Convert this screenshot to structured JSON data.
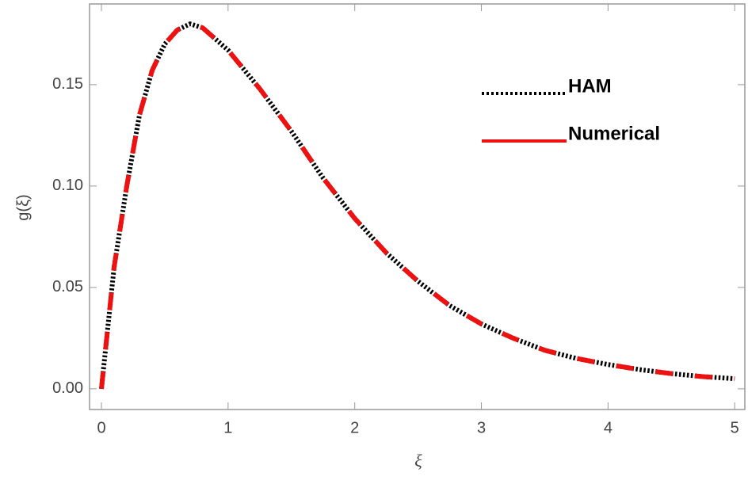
{
  "chart_data": {
    "type": "line",
    "x_label": "ξ",
    "y_label": "g(ξ)",
    "x": [
      0,
      0.1,
      0.2,
      0.3,
      0.4,
      0.5,
      0.6,
      0.7,
      0.8,
      1.0,
      1.25,
      1.5,
      1.75,
      2.0,
      2.25,
      2.5,
      2.75,
      3.0,
      3.25,
      3.5,
      3.75,
      4.0,
      4.25,
      4.5,
      4.75,
      5.0
    ],
    "series": [
      {
        "name": "HAM",
        "color": "#000000",
        "style": "dotted",
        "values": [
          0,
          0.06,
          0.1,
          0.135,
          0.157,
          0.17,
          0.177,
          0.18,
          0.178,
          0.167,
          0.148,
          0.127,
          0.104,
          0.084,
          0.067,
          0.053,
          0.041,
          0.032,
          0.025,
          0.019,
          0.015,
          0.012,
          0.0095,
          0.0075,
          0.006,
          0.005
        ]
      },
      {
        "name": "Numerical",
        "color": "#ee1111",
        "style": "dashed",
        "values": [
          0,
          0.06,
          0.1,
          0.135,
          0.157,
          0.17,
          0.177,
          0.18,
          0.178,
          0.167,
          0.148,
          0.127,
          0.104,
          0.084,
          0.067,
          0.053,
          0.041,
          0.032,
          0.025,
          0.019,
          0.015,
          0.012,
          0.0095,
          0.0075,
          0.006,
          0.005
        ]
      }
    ],
    "xlim": [
      -0.094,
      5.08
    ],
    "ylim": [
      -0.0102,
      0.1898
    ],
    "xticks": [
      0,
      1,
      2,
      3,
      4,
      5
    ],
    "yticks": [
      {
        "value": 0,
        "label": "0.00"
      },
      {
        "value": 0.05,
        "label": "0.05"
      },
      {
        "value": 0.1,
        "label": "0.10"
      },
      {
        "value": 0.15,
        "label": "0.15"
      }
    ]
  }
}
